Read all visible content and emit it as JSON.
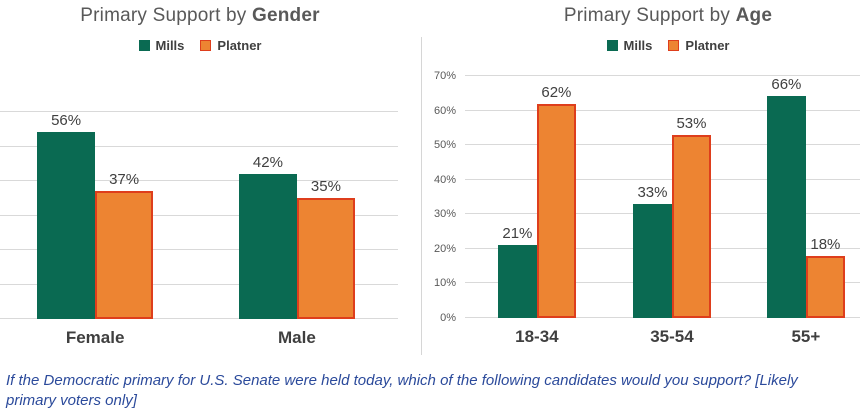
{
  "chart_data": [
    {
      "type": "bar",
      "title": "Primary Support by Gender",
      "title_prefix": "Primary Support by ",
      "title_emph": "Gender",
      "categories": [
        "Female",
        "Male"
      ],
      "series": [
        {
          "name": "Mills",
          "fill": "#0A6A52",
          "values": [
            56,
            42
          ]
        },
        {
          "name": "Platner",
          "fill": "#ED8432",
          "border": "#DE3E1C",
          "values": [
            37,
            35
          ]
        }
      ],
      "ylim": [
        0,
        60
      ],
      "grid_step": 10,
      "grid": true,
      "y_tick_labels": null,
      "value_suffix": "%",
      "legend_position": "top"
    },
    {
      "type": "bar",
      "title": "Primary Support by Age",
      "title_prefix": "Primary Support by ",
      "title_emph": "Age",
      "categories": [
        "18-34",
        "35-54",
        "55+"
      ],
      "series": [
        {
          "name": "Mills",
          "fill": "#0A6A52",
          "values": [
            21,
            33,
            66
          ]
        },
        {
          "name": "Platner",
          "fill": "#ED8432",
          "border": "#DE3E1C",
          "values": [
            62,
            53,
            18
          ]
        }
      ],
      "ylim": [
        0,
        70
      ],
      "grid_step": 10,
      "grid": true,
      "y_tick_labels": [
        "0%",
        "10%",
        "20%",
        "30%",
        "40%",
        "50%",
        "60%",
        "70%"
      ],
      "value_suffix": "%",
      "legend_position": "top"
    }
  ],
  "footer": {
    "lines": [
      "If the Democratic primary for U.S. Senate were held today, which of the following candidates would you support? [Likely",
      "primary voters only]"
    ],
    "color": "#2B4A9B"
  },
  "colors": {
    "title": "#595959",
    "grid": "#D9D9D9",
    "divider": "#D6D6D6"
  }
}
